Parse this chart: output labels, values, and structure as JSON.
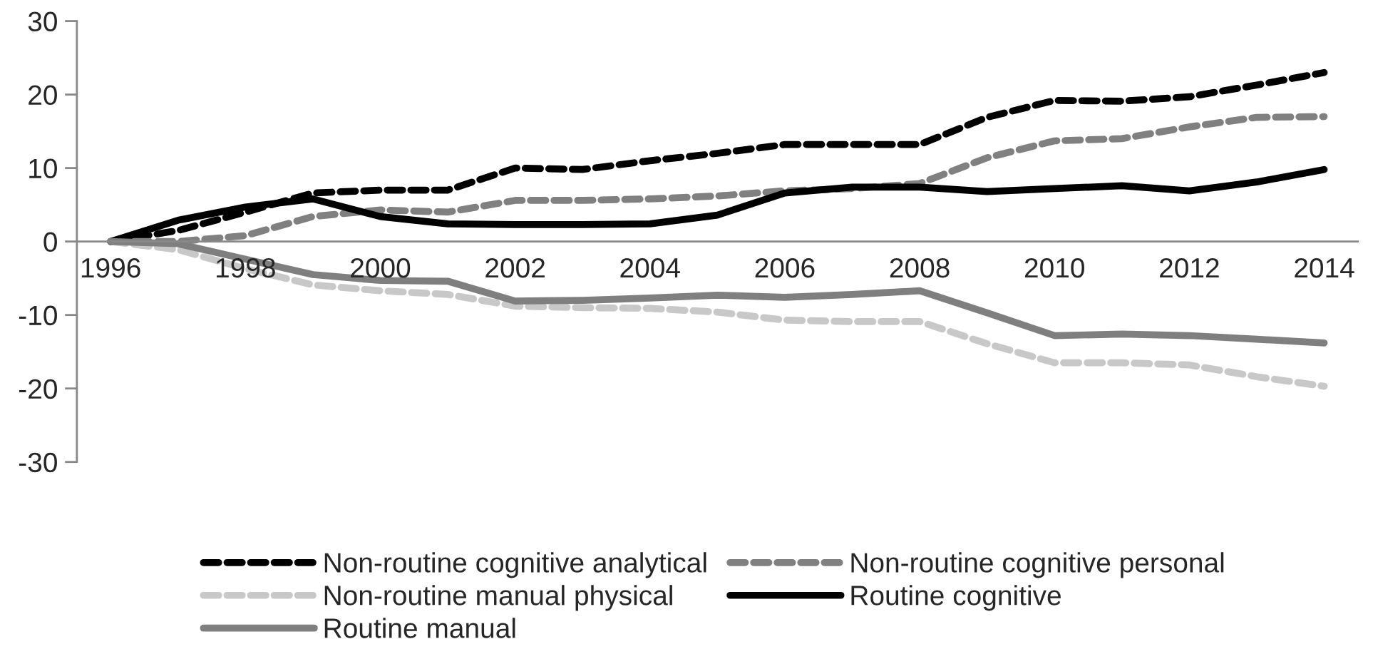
{
  "chart_data": {
    "type": "line",
    "categories": [
      "1996",
      null,
      "1998",
      null,
      "2000",
      null,
      "2002",
      null,
      "2004",
      null,
      "2006",
      null,
      "2008",
      null,
      "2010",
      null,
      "2012",
      null,
      "2014"
    ],
    "series": [
      {
        "name": "Non-routine cognitive analytical",
        "color": "#000000",
        "line_style": "dashed",
        "values": [
          0,
          1.5,
          4,
          6.6,
          7,
          7,
          10,
          9.8,
          11,
          12,
          13.2,
          13.2,
          13.2,
          16.9,
          19.2,
          19.1,
          19.7,
          21.3,
          23
        ]
      },
      {
        "name": "Non-routine cognitive personal",
        "color": "#808080",
        "line_style": "dashed",
        "values": [
          0,
          0,
          0.8,
          3.4,
          4.3,
          4,
          5.6,
          5.6,
          5.8,
          6.2,
          6.9,
          7.2,
          7.9,
          11.4,
          13.7,
          14,
          15.6,
          16.9,
          17
        ]
      },
      {
        "name": "Non-routine manual physical",
        "color": "#c8c8c8",
        "line_style": "dashed",
        "values": [
          0,
          -1.1,
          -3.7,
          -5.9,
          -6.7,
          -7.2,
          -8.8,
          -9,
          -9.1,
          -9.6,
          -10.7,
          -10.9,
          -10.9,
          -13.9,
          -16.5,
          -16.5,
          -16.8,
          -18.4,
          -19.7
        ]
      },
      {
        "name": "Routine cognitive",
        "color": "#000000",
        "line_style": "solid",
        "values": [
          0,
          2.9,
          4.7,
          5.8,
          3.4,
          2.4,
          2.3,
          2.3,
          2.4,
          3.6,
          6.6,
          7.4,
          7.4,
          6.8,
          7.2,
          7.6,
          6.9,
          8.1,
          9.8
        ]
      },
      {
        "name": "Routine manual",
        "color": "#7f7f7f",
        "line_style": "solid",
        "values": [
          0,
          -0.3,
          -2.4,
          -4.5,
          -5.3,
          -5.4,
          -8.1,
          -8,
          -7.7,
          -7.3,
          -7.6,
          -7.2,
          -6.7,
          -9.7,
          -12.8,
          -12.6,
          -12.8,
          -13.3,
          -13.8
        ]
      }
    ],
    "ylim": [
      -30,
      30
    ],
    "yticks": [
      -30,
      -20,
      -10,
      0,
      10,
      20,
      30
    ],
    "grid": false,
    "legend": "bottom",
    "marker": "none"
  }
}
